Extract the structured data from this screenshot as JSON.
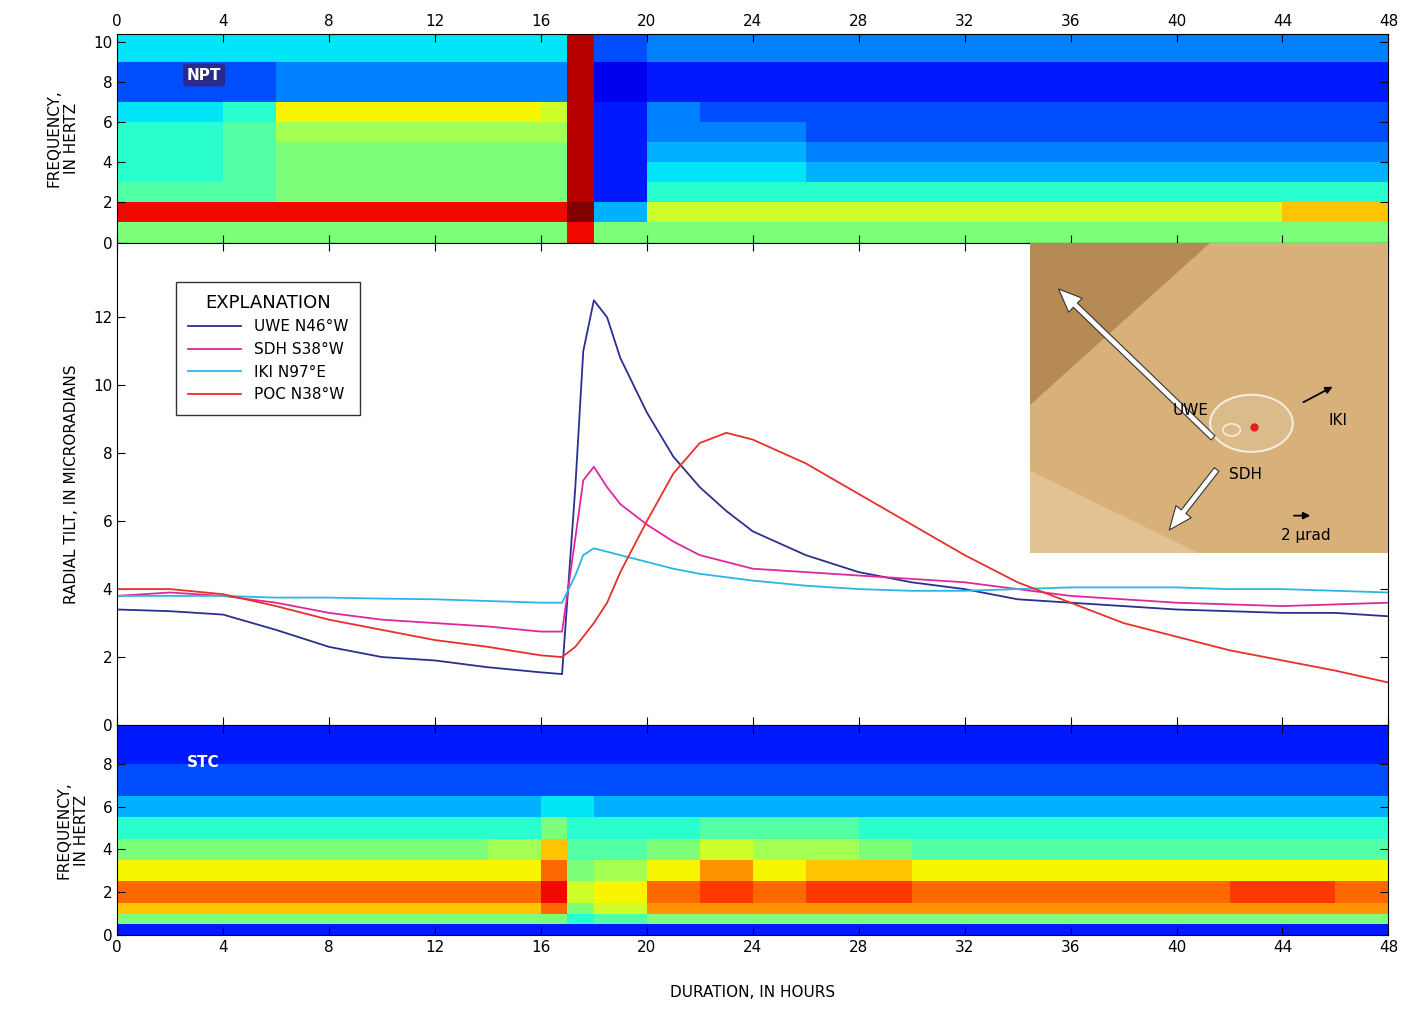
{
  "chart_data": [
    {
      "type": "heatmap",
      "label": "NPT",
      "ylabel": "FREQUENCY,\nIN HERTZ",
      "xlim": [
        0,
        48
      ],
      "xticks": [
        0,
        4,
        8,
        12,
        16,
        20,
        24,
        28,
        32,
        36,
        40,
        44,
        48
      ],
      "ylim": [
        0,
        10.4
      ],
      "yticks": [
        0,
        2,
        4,
        6,
        8,
        10
      ],
      "time_edges": [
        0,
        2,
        4,
        6,
        8,
        10,
        12,
        14,
        16,
        17,
        18,
        20,
        22,
        24,
        26,
        28,
        30,
        32,
        34,
        36,
        38,
        40,
        42,
        44,
        46,
        48
      ],
      "frequency_edges": [
        0,
        1,
        2,
        3,
        4,
        5,
        6,
        7,
        8,
        9,
        10.4
      ],
      "color_range": [
        0,
        10
      ],
      "cells": [
        [
          5,
          5,
          5,
          5,
          5,
          5,
          5,
          5,
          5,
          9,
          5,
          5,
          5,
          5,
          5,
          5,
          5,
          5,
          5,
          5,
          5,
          5,
          5,
          5,
          5
        ],
        [
          9,
          9,
          9,
          9,
          9,
          9,
          9,
          9,
          9,
          10,
          3,
          6,
          6,
          6,
          6,
          6,
          6,
          6,
          6,
          6,
          6,
          6,
          6,
          7,
          7
        ],
        [
          4.5,
          4.5,
          4.5,
          5,
          5,
          5,
          5,
          5,
          5,
          9.5,
          1.5,
          4,
          4,
          4,
          4,
          4,
          4,
          4,
          4,
          4,
          4,
          4,
          4,
          4,
          4
        ],
        [
          4,
          4,
          4.5,
          5,
          5,
          5,
          5,
          5,
          5,
          9.5,
          1.5,
          3.5,
          3.5,
          3.5,
          3,
          3,
          3,
          3,
          3,
          3,
          3,
          3,
          3,
          3,
          3
        ],
        [
          4,
          4,
          4.5,
          5,
          5,
          5,
          5,
          5,
          5,
          9.5,
          1.5,
          3,
          3,
          3,
          2.5,
          2.5,
          2.5,
          2.5,
          2.5,
          2.5,
          2.5,
          2.5,
          2.5,
          2.5,
          2.5
        ],
        [
          4,
          4,
          4.5,
          5.5,
          5.5,
          5.5,
          5.5,
          5.5,
          5.5,
          9.5,
          1.5,
          2.5,
          2.5,
          2.5,
          2,
          2,
          2,
          2,
          2,
          2,
          2,
          2,
          2,
          2,
          2
        ],
        [
          3.5,
          3.5,
          4,
          6.5,
          6.5,
          6.5,
          6.5,
          6.5,
          6,
          9.5,
          1.5,
          2.5,
          2,
          2,
          2,
          2,
          2,
          2,
          2,
          2,
          2,
          2,
          2,
          2,
          2
        ],
        [
          2,
          2,
          2,
          2.5,
          2.5,
          2.5,
          2.5,
          2.5,
          2.5,
          9.5,
          1,
          1.5,
          1.5,
          1.5,
          1.5,
          1.5,
          1.5,
          1.5,
          1.5,
          1.5,
          1.5,
          1.5,
          1.5,
          1.5,
          1.5
        ],
        [
          2,
          2,
          2,
          2.5,
          2.5,
          2.5,
          2.5,
          2.5,
          2.5,
          9.5,
          1,
          1.5,
          1.5,
          1.5,
          1.5,
          1.5,
          1.5,
          1.5,
          1.5,
          1.5,
          1.5,
          1.5,
          1.5,
          1.5,
          1.5
        ],
        [
          3.5,
          3.5,
          3.5,
          3.5,
          3.5,
          3.5,
          3.5,
          3.5,
          3.5,
          9.5,
          2,
          2.5,
          2.5,
          2.5,
          2.5,
          2.5,
          2.5,
          2.5,
          2.5,
          2.5,
          2.5,
          2.5,
          2.5,
          2.5,
          2.5
        ]
      ]
    },
    {
      "type": "line",
      "ylabel": "RADIAL TILT, IN MICRORADIANS",
      "xlim": [
        0,
        48
      ],
      "xticks": [
        0,
        4,
        8,
        12,
        16,
        20,
        24,
        28,
        32,
        36,
        40,
        44,
        48
      ],
      "ylim": [
        0,
        14.2
      ],
      "yticks": [
        0,
        2,
        4,
        6,
        8,
        10,
        12
      ],
      "tick_labels": "y",
      "legend": "upper left",
      "legend_title": "EXPLANATION",
      "x": [
        0,
        2,
        4,
        6,
        8,
        10,
        12,
        14,
        16,
        16.8,
        17.3,
        17.6,
        18,
        18.5,
        19,
        20,
        21,
        22,
        23,
        24,
        26,
        28,
        30,
        32,
        34,
        36,
        38,
        40,
        42,
        44,
        46,
        48
      ],
      "series": [
        {
          "name": "UWE N46°W",
          "color": "#2b2f8f",
          "values": [
            3.4,
            3.35,
            3.25,
            2.8,
            2.3,
            2.0,
            1.9,
            1.7,
            1.55,
            1.5,
            7.0,
            11.0,
            12.5,
            12.0,
            10.8,
            9.2,
            7.9,
            7.0,
            6.3,
            5.7,
            5.0,
            4.5,
            4.2,
            4.0,
            3.7,
            3.6,
            3.5,
            3.4,
            3.35,
            3.3,
            3.3,
            3.2
          ]
        },
        {
          "name": "SDH S38°W",
          "color": "#e0289b",
          "values": [
            3.8,
            3.9,
            3.8,
            3.6,
            3.3,
            3.1,
            3.0,
            2.9,
            2.75,
            2.75,
            5.5,
            7.2,
            7.6,
            7.0,
            6.5,
            5.9,
            5.4,
            5.0,
            4.8,
            4.6,
            4.5,
            4.4,
            4.3,
            4.2,
            4.0,
            3.8,
            3.7,
            3.6,
            3.55,
            3.5,
            3.55,
            3.6
          ]
        },
        {
          "name": "IKI N97°E",
          "color": "#29b6e6",
          "values": [
            3.8,
            3.8,
            3.8,
            3.75,
            3.75,
            3.72,
            3.7,
            3.65,
            3.6,
            3.6,
            4.4,
            5.0,
            5.2,
            5.1,
            5.0,
            4.8,
            4.6,
            4.45,
            4.35,
            4.25,
            4.1,
            4.0,
            3.95,
            3.95,
            4.0,
            4.05,
            4.05,
            4.05,
            4.0,
            4.0,
            3.95,
            3.9
          ]
        },
        {
          "name": "POC N38°W",
          "color": "#e8302a",
          "values": [
            4.0,
            4.0,
            3.85,
            3.5,
            3.1,
            2.8,
            2.5,
            2.3,
            2.05,
            2.0,
            2.3,
            2.6,
            3.0,
            3.6,
            4.5,
            6.0,
            7.4,
            8.3,
            8.6,
            8.4,
            7.7,
            6.8,
            5.9,
            5.0,
            4.2,
            3.6,
            3.0,
            2.6,
            2.2,
            1.9,
            1.6,
            1.25
          ]
        }
      ],
      "inset": {
        "type": "map",
        "vectors": [
          {
            "name": "UWE",
            "azimuth": 314,
            "magnitude": 20
          },
          {
            "name": "SDH",
            "azimuth": 218,
            "magnitude": 7.5
          },
          {
            "name": "IKI",
            "azimuth": 62,
            "magnitude": 3.5
          }
        ],
        "scale": {
          "magnitude": 2,
          "azimuth": 90,
          "label": "2 µrad"
        }
      }
    },
    {
      "type": "heatmap",
      "label": "STC",
      "ylabel": "FREQUENCY,\nIN HERTZ",
      "xlabel": "DURATION, IN HOURS",
      "xlim": [
        0,
        48
      ],
      "xticks": [
        0,
        4,
        8,
        12,
        16,
        20,
        24,
        28,
        32,
        36,
        40,
        44,
        48
      ],
      "ylim": [
        0,
        9.8
      ],
      "yticks": [
        0,
        2,
        4,
        6,
        8
      ],
      "time_edges": [
        0,
        2,
        4,
        6,
        8,
        10,
        12,
        14,
        16,
        17,
        18,
        20,
        22,
        24,
        26,
        28,
        30,
        32,
        34,
        36,
        38,
        40,
        42,
        44,
        46,
        48
      ],
      "frequency_edges": [
        0,
        0.5,
        1,
        1.5,
        2.5,
        3.5,
        4.5,
        5.5,
        6.5,
        8,
        9.8
      ],
      "color_range": [
        0,
        10
      ],
      "cells": [
        [
          1.5,
          1.5,
          1.5,
          1.5,
          1.5,
          1.5,
          1.5,
          1.5,
          1.5,
          1.5,
          1.5,
          1.5,
          1.5,
          1.5,
          1.5,
          1.5,
          1.5,
          1.5,
          1.5,
          1.5,
          1.5,
          1.5,
          1.5,
          1.5,
          1.5
        ],
        [
          5,
          5,
          5,
          5,
          5,
          5,
          5,
          5,
          5,
          4,
          4.5,
          5,
          5,
          5,
          5,
          5,
          5,
          5,
          5,
          5,
          5,
          5,
          5,
          5,
          5
        ],
        [
          7,
          7,
          7,
          7,
          7,
          7,
          7,
          7,
          8,
          5,
          6,
          7.5,
          7.5,
          7.5,
          7.5,
          7.5,
          7.5,
          7.5,
          7.5,
          7.5,
          7.5,
          7.5,
          7.5,
          7.5,
          7.5
        ],
        [
          8,
          8,
          8,
          8,
          8,
          8,
          8,
          8,
          9,
          6,
          6.5,
          8,
          8.5,
          8,
          8.5,
          8.5,
          8,
          8,
          8,
          8,
          8,
          8,
          8.5,
          8.5,
          8
        ],
        [
          6.5,
          6.5,
          6.5,
          6.5,
          6.5,
          6.5,
          6.5,
          6.5,
          8,
          5,
          5.5,
          6.5,
          7.5,
          6.5,
          7,
          7,
          6.5,
          6.5,
          6.5,
          6.5,
          6.5,
          6.5,
          6.5,
          6.5,
          6.5
        ],
        [
          5,
          5,
          5,
          5,
          5,
          5,
          5,
          5.5,
          7,
          4.5,
          4.5,
          5,
          6,
          5.5,
          5.5,
          5,
          4.5,
          4.5,
          4.5,
          4.5,
          4.5,
          4.5,
          4.5,
          4.5,
          4.5
        ],
        [
          4,
          4,
          4,
          4,
          4,
          4,
          4,
          4,
          5,
          4,
          4,
          4,
          4.5,
          4.5,
          4.5,
          4,
          4,
          4,
          4,
          4,
          4,
          4,
          4,
          4,
          4
        ],
        [
          3,
          3,
          3,
          3,
          3,
          3,
          3,
          3,
          3.5,
          3.5,
          3,
          3,
          3,
          3,
          3,
          3,
          3,
          3,
          3,
          3,
          3,
          3,
          3,
          3,
          3
        ],
        [
          2,
          2,
          2,
          2,
          2,
          2,
          2,
          2,
          2,
          2,
          2,
          2,
          2,
          2,
          2,
          2,
          2,
          2,
          2,
          2,
          2,
          2,
          2,
          2,
          2
        ],
        [
          1.5,
          1.5,
          1.5,
          1.5,
          1.5,
          1.5,
          1.5,
          1.5,
          1.5,
          1.5,
          1.5,
          1.5,
          1.5,
          1.5,
          1.5,
          1.5,
          1.5,
          1.5,
          1.5,
          1.5,
          1.5,
          1.5,
          1.5,
          1.5,
          1.5
        ]
      ]
    }
  ]
}
